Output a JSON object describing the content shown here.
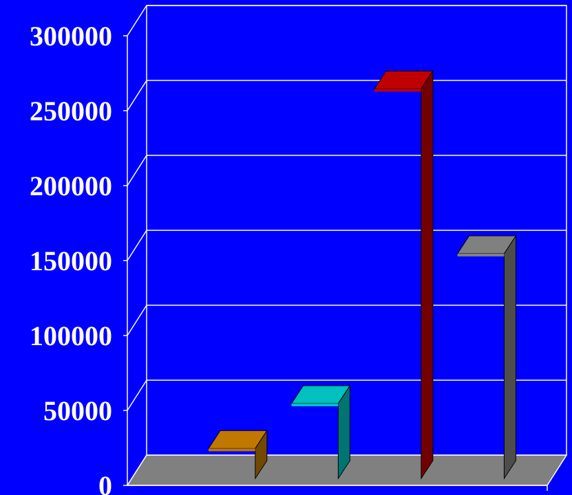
{
  "chart_data": {
    "type": "bar",
    "style": "3d",
    "categories": [
      "",
      "",
      "",
      ""
    ],
    "values": [
      20000,
      50000,
      260000,
      150000
    ],
    "bar_colors": [
      "#c07800",
      "#00c0c0",
      "#c00000",
      "#808080"
    ],
    "y_ticks": [
      0,
      50000,
      100000,
      150000,
      200000,
      250000,
      300000
    ],
    "y_tick_labels": [
      "0",
      "50000",
      "100000",
      "150000",
      "200000",
      "250000",
      "300000"
    ],
    "ylim": [
      0,
      300000
    ],
    "grid": true,
    "title": "",
    "xlabel": "",
    "ylabel": ""
  },
  "colors": {
    "background": "#0000ff",
    "plot_area": "#0000ff",
    "floor": "#808080",
    "grid_lines": "#ffffff",
    "text": "#ffffff"
  }
}
